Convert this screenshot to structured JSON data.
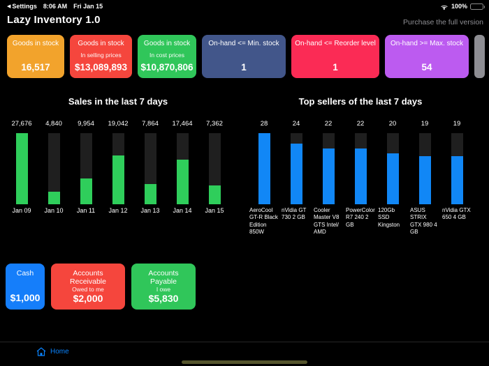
{
  "status_bar": {
    "back_label": "Settings",
    "time": "8:06 AM",
    "date": "Fri Jan 15",
    "battery_percent": "100%"
  },
  "header": {
    "title": "Lazy Inventory 1.0",
    "purchase_link": "Purchase the full version"
  },
  "kpi_cards": [
    {
      "title": "Goods in stock",
      "value": "16,517",
      "color": "#f2a32c"
    },
    {
      "title": "Goods in stock",
      "subtitle": "In selling prices",
      "value": "$13,089,893",
      "color": "#f5463d"
    },
    {
      "title": "Goods in stock",
      "subtitle": "In cost prices",
      "value": "$10,870,806",
      "color": "#30c65a"
    },
    {
      "title": "On-hand <= Min. stock",
      "value": "1",
      "color": "#42568a"
    },
    {
      "title": "On-hand <= Reorder level",
      "value": "1",
      "color": "#fb2b55"
    },
    {
      "title": "On-hand >= Max. stock",
      "value": "54",
      "color": "#bc5bf0"
    }
  ],
  "chart_data": [
    {
      "type": "bar",
      "title": "Sales in the last 7 days",
      "categories": [
        "Jan 09",
        "Jan 10",
        "Jan 11",
        "Jan 12",
        "Jan 13",
        "Jan 14",
        "Jan 15"
      ],
      "values": [
        27676,
        4840,
        9954,
        19042,
        7864,
        17464,
        7362
      ],
      "value_labels": [
        "27,676",
        "4,840",
        "9,954",
        "19,042",
        "7,864",
        "17,464",
        "7,362"
      ],
      "ylim": [
        0,
        27676
      ],
      "bar_color": "#2fce5b",
      "track_color": "#1f1f1f",
      "legend": "none",
      "grid": false
    },
    {
      "type": "bar",
      "title": "Top sellers of the last 7 days",
      "categories": [
        "AeroCool GT-R Black Edition 850W",
        "nVidia GT 730 2 GB",
        "Cooler Master V8 GTS Intel/ AMD",
        "PowerColor R7 240 2 GB",
        "120Gb SSD Kingston",
        "ASUS STRIX GTX 980 4 GB",
        "nVidia GTX 650 4 GB"
      ],
      "values": [
        28,
        24,
        22,
        22,
        20,
        19,
        19
      ],
      "value_labels": [
        "28",
        "24",
        "22",
        "22",
        "20",
        "19",
        "19"
      ],
      "ylim": [
        0,
        28
      ],
      "bar_color": "#1187f6",
      "track_color": "#1f1f1f",
      "legend": "none",
      "grid": false
    }
  ],
  "finance_cards": [
    {
      "title": "Cash",
      "value": "$1,000",
      "color": "#157efa"
    },
    {
      "title": "Accounts Receivable",
      "subtitle": "Owed to me",
      "value": "$2,000",
      "color": "#f5463d"
    },
    {
      "title": "Accounts Payable",
      "subtitle": "I owe",
      "value": "$5,830",
      "color": "#30c65a"
    }
  ],
  "tab_bar": {
    "home_label": "Home"
  },
  "icons": {
    "back_arrow": "◀",
    "wifi": "wifi-arcs-css-shape",
    "battery": "battery-full-css-shape",
    "home": "house-outline-svg"
  }
}
